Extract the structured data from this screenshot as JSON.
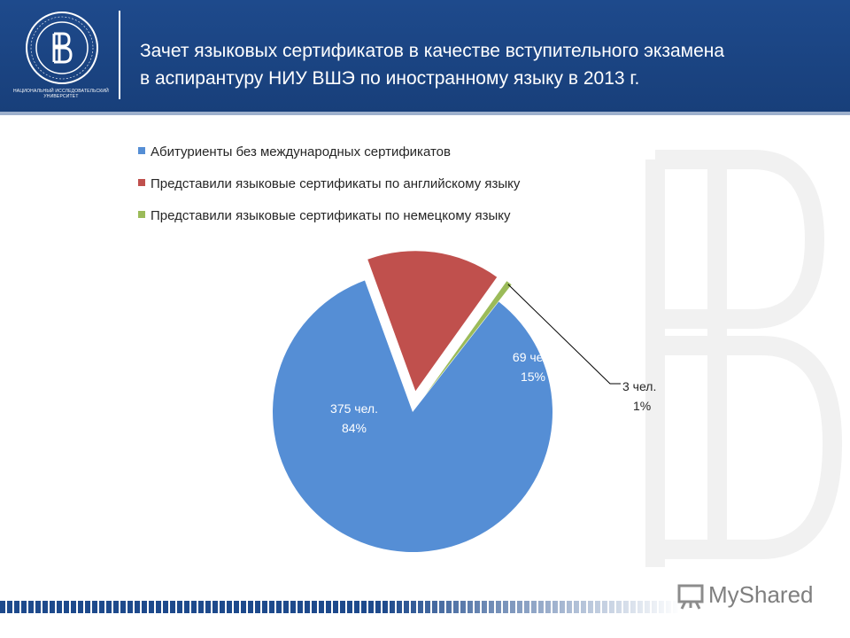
{
  "header": {
    "title_line1": "Зачет языковых сертификатов в качестве вступительного экзамена",
    "title_line2": "в аспирантуру НИУ ВШЭ по иностранному языку в 2013 г.",
    "logo_caption": "НАЦИОНАЛЬНЫЙ ИССЛЕДОВАТЕЛЬСКИЙ УНИВЕРСИТЕТ"
  },
  "chart_data": {
    "type": "pie",
    "title": "",
    "legend_position": "top",
    "series": [
      {
        "name": "Абитуриенты без международных сертификатов",
        "value": 375,
        "count_label": "375 чел.",
        "percent_label": "84%",
        "color": "#558ed5"
      },
      {
        "name": "Представили языковые сертификаты по английскому языку",
        "value": 69,
        "count_label": "69 чел.",
        "percent_label": "15%",
        "color": "#c0504d"
      },
      {
        "name": "Представили языковые сертификаты по немецкому языку",
        "value": 3,
        "count_label": "3 чел.",
        "percent_label": "1%",
        "color": "#9bbb59"
      }
    ]
  },
  "brand": {
    "name": "MyShared"
  }
}
